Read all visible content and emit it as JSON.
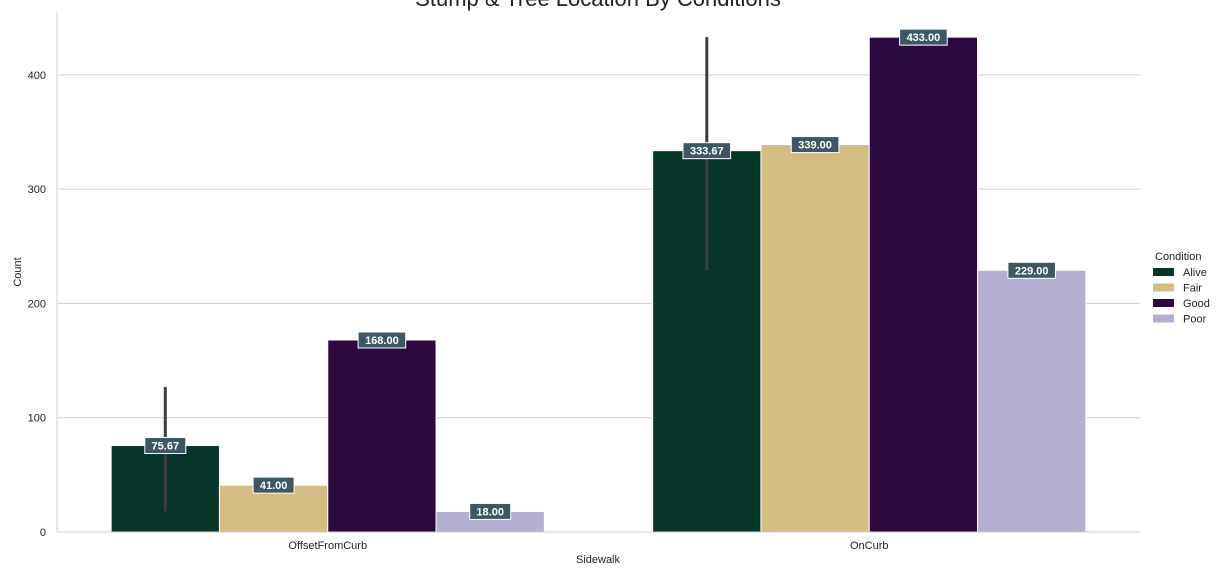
{
  "chart_data": {
    "type": "bar",
    "title": "Stump & Tree Location By Conditions",
    "xlabel": "Sidewalk",
    "ylabel": "Count",
    "categories": [
      "OffsetFromCurb",
      "OnCurb"
    ],
    "ylim": [
      0,
      455
    ],
    "yticks": [
      0,
      100,
      200,
      300,
      400
    ],
    "grid": "horizontal",
    "legend": {
      "title": "Condition",
      "placement": "center-right"
    },
    "series": [
      {
        "name": "Alive",
        "color": "#08352a",
        "values": [
          75.67,
          333.67
        ],
        "labels": [
          "75.67",
          "333.67"
        ],
        "error_low": [
          18,
          229
        ],
        "error_high": [
          127,
          433
        ]
      },
      {
        "name": "Fair",
        "color": "#d4bd84",
        "values": [
          41,
          339
        ],
        "labels": [
          "41.00",
          "339.00"
        ]
      },
      {
        "name": "Good",
        "color": "#2c0a40",
        "values": [
          168,
          433
        ],
        "labels": [
          "168.00",
          "433.00"
        ]
      },
      {
        "name": "Poor",
        "color": "#b4aed0",
        "values": [
          18,
          229
        ],
        "labels": [
          "18.00",
          "229.00"
        ]
      }
    ],
    "data_label_box_color": "#3f5763"
  }
}
